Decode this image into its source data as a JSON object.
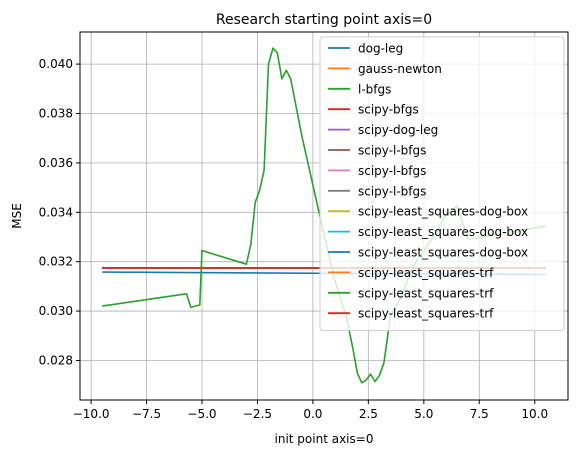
{
  "chart_data": {
    "type": "line",
    "title": "Research starting point axis=0",
    "xlabel": "init point axis=0",
    "ylabel": "MSE",
    "xlim": [
      -10.5,
      11.5
    ],
    "ylim": [
      0.0264,
      0.0413
    ],
    "grid": true,
    "legend_position": "top-right",
    "xticks": [
      -10.0,
      -7.5,
      -5.0,
      -2.5,
      0.0,
      2.5,
      5.0,
      7.5,
      10.0
    ],
    "xtick_labels": [
      "−10.0",
      "−7.5",
      "−5.0",
      "−2.5",
      "0.0",
      "2.5",
      "5.0",
      "7.5",
      "10.0"
    ],
    "yticks": [
      0.028,
      0.03,
      0.032,
      0.034,
      0.036,
      0.038,
      0.04
    ],
    "ytick_labels": [
      "0.028",
      "0.030",
      "0.032",
      "0.034",
      "0.036",
      "0.038",
      "0.040"
    ],
    "series": [
      {
        "name": "dog-leg",
        "color": "#1f77b4",
        "x": [
          -9.5,
          10.5
        ],
        "y": [
          0.03158,
          0.03148
        ]
      },
      {
        "name": "gauss-newton",
        "color": "#ff7f0e",
        "x": [
          -9.5,
          10.5
        ],
        "y": [
          0.03175,
          0.03175
        ]
      },
      {
        "name": "l-bfgs",
        "color": "#2ca02c",
        "x": [
          -9.5,
          -5.7,
          -5.5,
          -5.1,
          -5.0,
          -3.0,
          -2.8,
          -2.6,
          -2.4,
          -2.2,
          -2.0,
          -1.8,
          -1.6,
          -1.4,
          -1.2,
          -1.0,
          -0.5,
          0.0,
          0.5,
          1.0,
          1.5,
          1.8,
          2.0,
          2.2,
          2.4,
          2.6,
          2.8,
          3.0,
          3.2,
          3.5,
          4.0,
          4.5,
          5.5,
          6.0,
          6.5,
          7.0,
          10.5
        ],
        "y": [
          0.0302,
          0.0307,
          0.03015,
          0.03025,
          0.03245,
          0.0319,
          0.0327,
          0.0344,
          0.0349,
          0.0357,
          0.04,
          0.04065,
          0.04045,
          0.0394,
          0.03975,
          0.0394,
          0.0371,
          0.0351,
          0.0331,
          0.0312,
          0.0298,
          0.0285,
          0.0275,
          0.0271,
          0.0272,
          0.02745,
          0.02715,
          0.0274,
          0.0279,
          0.0298,
          0.0306,
          0.0318,
          0.0331,
          0.0339,
          0.03425,
          0.0329,
          0.03345
        ]
      },
      {
        "name": "scipy-bfgs",
        "color": "#d62728",
        "x": [
          -9.5,
          10.5
        ],
        "y": [
          0.03175,
          0.03175
        ]
      },
      {
        "name": "scipy-dog-leg",
        "color": "#9467bd",
        "x": [
          -9.5,
          10.5
        ],
        "y": [
          0.03175,
          0.03175
        ]
      },
      {
        "name": "scipy-l-bfgs",
        "color": "#8c564b",
        "x": [
          -9.5,
          10.5
        ],
        "y": [
          0.03175,
          0.03175
        ]
      },
      {
        "name": "scipy-l-bfgs",
        "color": "#e377c2",
        "x": [
          -9.5,
          10.5
        ],
        "y": [
          0.03175,
          0.03175
        ]
      },
      {
        "name": "scipy-l-bfgs",
        "color": "#7f7f7f",
        "x": [
          -9.5,
          10.5
        ],
        "y": [
          0.03175,
          0.03175
        ]
      },
      {
        "name": "scipy-least_squares-dog-box",
        "color": "#bcbd22",
        "x": [
          -9.5,
          10.5
        ],
        "y": [
          0.03175,
          0.03175
        ]
      },
      {
        "name": "scipy-least_squares-dog-box",
        "color": "#17becf",
        "x": [
          -9.5,
          10.5
        ],
        "y": [
          0.03175,
          0.03175
        ]
      },
      {
        "name": "scipy-least_squares-dog-box",
        "color": "#1f77b4",
        "x": [
          -9.5,
          10.5
        ],
        "y": [
          0.03175,
          0.03175
        ]
      },
      {
        "name": "scipy-least_squares-trf",
        "color": "#ff7f0e",
        "x": [
          -9.5,
          10.5
        ],
        "y": [
          0.03175,
          0.03175
        ]
      },
      {
        "name": "scipy-least_squares-trf",
        "color": "#2ca02c",
        "x": [
          -9.5,
          10.5
        ],
        "y": [
          0.03175,
          0.03175
        ]
      },
      {
        "name": "scipy-least_squares-trf",
        "color": "#d62728",
        "x": [
          -9.5,
          10.5
        ],
        "y": [
          0.03175,
          0.03175
        ]
      }
    ]
  }
}
